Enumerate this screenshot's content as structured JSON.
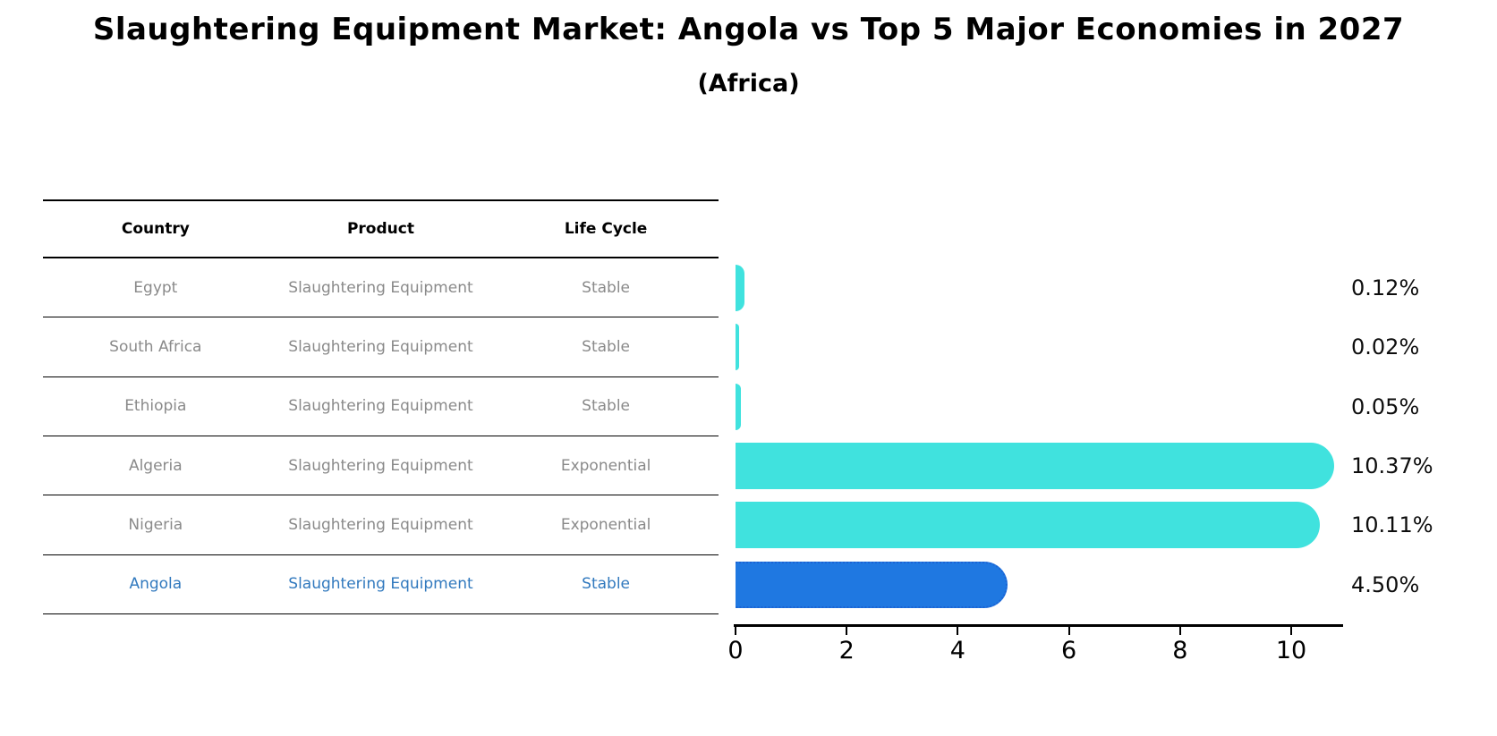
{
  "title": "Slaughtering Equipment Market: Angola vs Top 5 Major Economies in 2027",
  "subtitle": "(Africa)",
  "table": {
    "headers": [
      "Country",
      "Product",
      "Life Cycle"
    ],
    "rows": [
      {
        "country": "Egypt",
        "product": "Slaughtering Equipment",
        "life_cycle": "Stable",
        "highlight": false
      },
      {
        "country": "South Africa",
        "product": "Slaughtering Equipment",
        "life_cycle": "Stable",
        "highlight": false
      },
      {
        "country": "Ethiopia",
        "product": "Slaughtering Equipment",
        "life_cycle": "Stable",
        "highlight": false
      },
      {
        "country": "Algeria",
        "product": "Slaughtering Equipment",
        "life_cycle": "Exponential",
        "highlight": false
      },
      {
        "country": "Nigeria",
        "product": "Slaughtering Equipment",
        "life_cycle": "Exponential",
        "highlight": false
      },
      {
        "country": "Angola",
        "product": "Slaughtering Equipment",
        "life_cycle": "Stable",
        "highlight": true
      }
    ]
  },
  "chart_data": {
    "type": "bar",
    "orientation": "horizontal",
    "title": "Slaughtering Equipment Market: Angola vs Top 5 Major Economies in 2027",
    "subtitle": "(Africa)",
    "categories": [
      "Egypt",
      "South Africa",
      "Ethiopia",
      "Algeria",
      "Nigeria",
      "Angola"
    ],
    "values": [
      0.12,
      0.02,
      0.05,
      10.37,
      10.11,
      4.5
    ],
    "value_labels": [
      "0.12%",
      "0.02%",
      "0.05%",
      "10.37%",
      "10.11%",
      "4.50%"
    ],
    "x_ticks": [
      "0",
      "2",
      "4",
      "6",
      "8",
      "10"
    ],
    "x_tick_values": [
      0,
      2,
      4,
      6,
      8,
      10
    ],
    "xlim": [
      0,
      11
    ],
    "grid": false,
    "legend_position": "none",
    "highlight_index": 5
  },
  "colors": {
    "bar": "#40E2DE",
    "highlight_bar": "#1F78E1",
    "highlight_border": "#1B63D4",
    "highlight_text": "#3179BE",
    "row_text": "#8A8A8A",
    "line": "#000000"
  }
}
